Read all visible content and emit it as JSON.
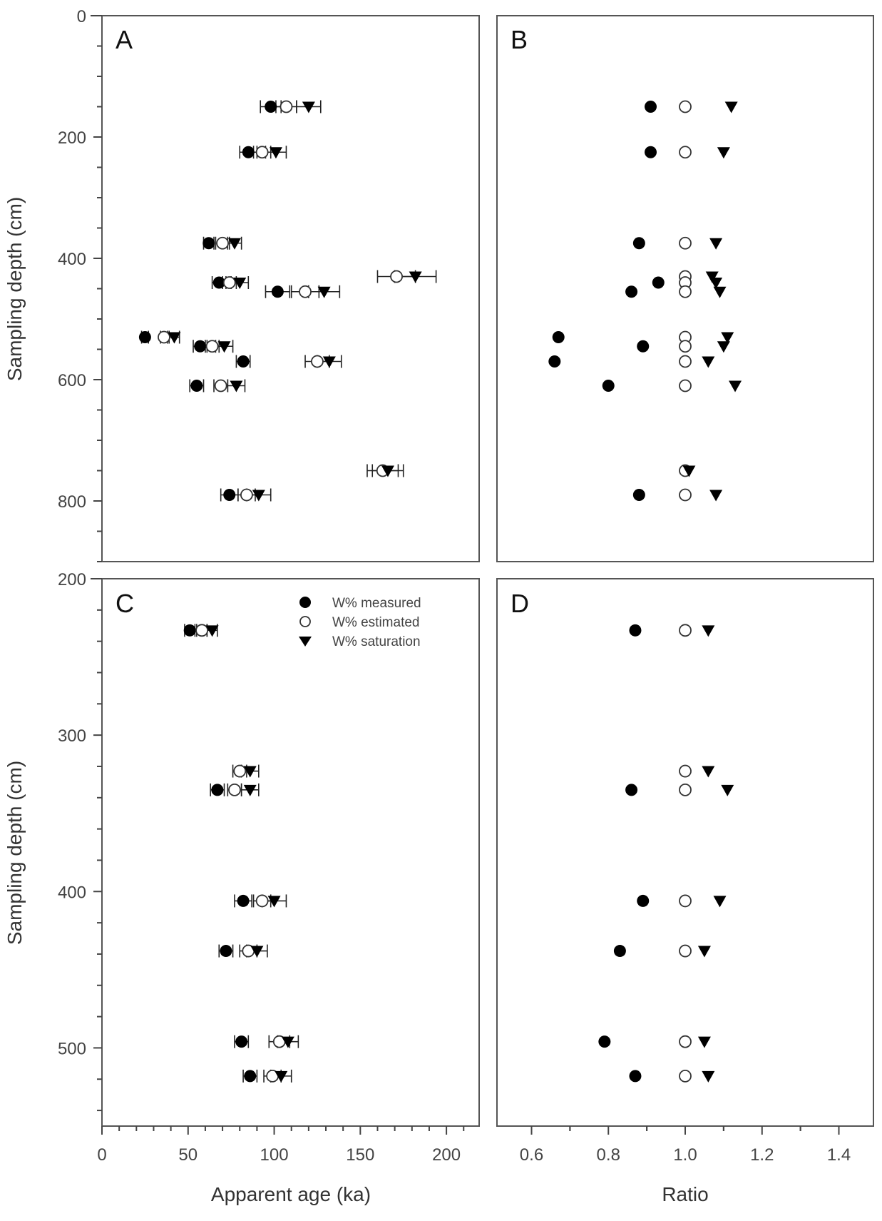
{
  "chart_data": [
    {
      "panel": "A",
      "type": "scatter",
      "xlabel": "",
      "ylabel": "Sampling depth (cm)",
      "xlim": [
        0,
        219
      ],
      "ylim": [
        900,
        0
      ],
      "y_ticks": [
        0,
        200,
        400,
        600,
        800
      ],
      "y_tick_labels": [
        "0",
        "200",
        "400",
        "600",
        "800"
      ],
      "y_minor_step": 50,
      "x_ticks": [],
      "error_bars": true,
      "series": [
        {
          "name": "W% measured",
          "marker": "filled-circle",
          "points": [
            {
              "depth": 150,
              "value": 98,
              "err": 6
            },
            {
              "depth": 225,
              "value": 85,
              "err": 5
            },
            {
              "depth": 375,
              "value": 62,
              "err": 3
            },
            {
              "depth": 440,
              "value": 68,
              "err": 4
            },
            {
              "depth": 455,
              "value": 102,
              "err": 7
            },
            {
              "depth": 530,
              "value": 25,
              "err": 2
            },
            {
              "depth": 545,
              "value": 57,
              "err": 4
            },
            {
              "depth": 570,
              "value": 82,
              "err": 4
            },
            {
              "depth": 610,
              "value": 55,
              "err": 4
            },
            {
              "depth": 790,
              "value": 74,
              "err": 5
            }
          ]
        },
        {
          "name": "W% estimated",
          "marker": "open-circle",
          "points": [
            {
              "depth": 150,
              "value": 107,
              "err": 6
            },
            {
              "depth": 225,
              "value": 93,
              "err": 5
            },
            {
              "depth": 375,
              "value": 70,
              "err": 4
            },
            {
              "depth": 430,
              "value": 171,
              "err": 11
            },
            {
              "depth": 440,
              "value": 74,
              "err": 4
            },
            {
              "depth": 455,
              "value": 118,
              "err": 8
            },
            {
              "depth": 530,
              "value": 36,
              "err": 2
            },
            {
              "depth": 545,
              "value": 64,
              "err": 4
            },
            {
              "depth": 570,
              "value": 125,
              "err": 7
            },
            {
              "depth": 610,
              "value": 69,
              "err": 4
            },
            {
              "depth": 750,
              "value": 163,
              "err": 9
            },
            {
              "depth": 790,
              "value": 84,
              "err": 5
            }
          ]
        },
        {
          "name": "W% saturation",
          "marker": "filled-triangle-down",
          "points": [
            {
              "depth": 150,
              "value": 120,
              "err": 7
            },
            {
              "depth": 225,
              "value": 101,
              "err": 6
            },
            {
              "depth": 375,
              "value": 77,
              "err": 4
            },
            {
              "depth": 430,
              "value": 182,
              "err": 12
            },
            {
              "depth": 440,
              "value": 80,
              "err": 5
            },
            {
              "depth": 455,
              "value": 129,
              "err": 9
            },
            {
              "depth": 530,
              "value": 42,
              "err": 3
            },
            {
              "depth": 545,
              "value": 71,
              "err": 5
            },
            {
              "depth": 570,
              "value": 132,
              "err": 7
            },
            {
              "depth": 610,
              "value": 78,
              "err": 5
            },
            {
              "depth": 750,
              "value": 166,
              "err": 9
            },
            {
              "depth": 790,
              "value": 91,
              "err": 7
            }
          ]
        }
      ]
    },
    {
      "panel": "B",
      "type": "scatter",
      "xlabel": "",
      "ylabel": "",
      "xlim": [
        0.51,
        1.49
      ],
      "ylim": [
        900,
        0
      ],
      "series": [
        {
          "name": "W% measured",
          "marker": "filled-circle",
          "points": [
            {
              "depth": 150,
              "value": 0.91
            },
            {
              "depth": 225,
              "value": 0.91
            },
            {
              "depth": 375,
              "value": 0.88
            },
            {
              "depth": 440,
              "value": 0.93
            },
            {
              "depth": 455,
              "value": 0.86
            },
            {
              "depth": 530,
              "value": 0.67
            },
            {
              "depth": 545,
              "value": 0.89
            },
            {
              "depth": 570,
              "value": 0.66
            },
            {
              "depth": 610,
              "value": 0.8
            },
            {
              "depth": 790,
              "value": 0.88
            }
          ]
        },
        {
          "name": "W% estimated",
          "marker": "open-circle",
          "points": [
            {
              "depth": 150,
              "value": 1.0
            },
            {
              "depth": 225,
              "value": 1.0
            },
            {
              "depth": 375,
              "value": 1.0
            },
            {
              "depth": 430,
              "value": 1.0
            },
            {
              "depth": 440,
              "value": 1.0
            },
            {
              "depth": 455,
              "value": 1.0
            },
            {
              "depth": 530,
              "value": 1.0
            },
            {
              "depth": 545,
              "value": 1.0
            },
            {
              "depth": 570,
              "value": 1.0
            },
            {
              "depth": 610,
              "value": 1.0
            },
            {
              "depth": 750,
              "value": 1.0
            },
            {
              "depth": 790,
              "value": 1.0
            }
          ]
        },
        {
          "name": "W% saturation",
          "marker": "filled-triangle-down",
          "points": [
            {
              "depth": 150,
              "value": 1.12
            },
            {
              "depth": 225,
              "value": 1.1
            },
            {
              "depth": 375,
              "value": 1.08
            },
            {
              "depth": 430,
              "value": 1.07
            },
            {
              "depth": 440,
              "value": 1.08
            },
            {
              "depth": 455,
              "value": 1.09
            },
            {
              "depth": 530,
              "value": 1.11
            },
            {
              "depth": 545,
              "value": 1.1
            },
            {
              "depth": 570,
              "value": 1.06
            },
            {
              "depth": 610,
              "value": 1.13
            },
            {
              "depth": 750,
              "value": 1.01
            },
            {
              "depth": 790,
              "value": 1.08
            }
          ]
        }
      ]
    },
    {
      "panel": "C",
      "type": "scatter",
      "xlabel": "Apparent age (ka)",
      "ylabel": "Sampling depth (cm)",
      "xlim": [
        0,
        219
      ],
      "ylim": [
        550,
        200
      ],
      "x_ticks": [
        0,
        50,
        100,
        150,
        200
      ],
      "x_tick_labels": [
        "0",
        "50",
        "100",
        "150",
        "200"
      ],
      "x_minor_step": 10,
      "y_ticks": [
        200,
        300,
        400,
        500
      ],
      "y_tick_labels": [
        "200",
        "300",
        "400",
        "500"
      ],
      "y_minor_step": 20,
      "legend": {
        "position": "top-right",
        "entries": [
          {
            "label": "W% measured",
            "marker": "filled-circle"
          },
          {
            "label": "W% estimated",
            "marker": "open-circle"
          },
          {
            "label": "W% saturation",
            "marker": "filled-triangle-down"
          }
        ]
      },
      "error_bars": true,
      "series": [
        {
          "name": "W% measured",
          "marker": "filled-circle",
          "points": [
            {
              "depth": 233,
              "value": 51,
              "err": 3
            },
            {
              "depth": 335,
              "value": 67,
              "err": 4
            },
            {
              "depth": 406,
              "value": 82,
              "err": 5
            },
            {
              "depth": 438,
              "value": 72,
              "err": 4
            },
            {
              "depth": 496,
              "value": 81,
              "err": 4
            },
            {
              "depth": 518,
              "value": 86,
              "err": 4
            }
          ]
        },
        {
          "name": "W% estimated",
          "marker": "open-circle",
          "points": [
            {
              "depth": 233,
              "value": 58,
              "err": 3
            },
            {
              "depth": 323,
              "value": 80,
              "err": 4
            },
            {
              "depth": 335,
              "value": 77,
              "err": 4
            },
            {
              "depth": 406,
              "value": 93,
              "err": 5
            },
            {
              "depth": 438,
              "value": 85,
              "err": 5
            },
            {
              "depth": 496,
              "value": 103,
              "err": 6
            },
            {
              "depth": 518,
              "value": 99,
              "err": 5
            }
          ]
        },
        {
          "name": "W% saturation",
          "marker": "filled-triangle-down",
          "points": [
            {
              "depth": 233,
              "value": 64,
              "err": 3
            },
            {
              "depth": 323,
              "value": 86,
              "err": 5
            },
            {
              "depth": 335,
              "value": 86,
              "err": 5
            },
            {
              "depth": 406,
              "value": 100,
              "err": 7
            },
            {
              "depth": 438,
              "value": 90,
              "err": 6
            },
            {
              "depth": 496,
              "value": 108,
              "err": 6
            },
            {
              "depth": 518,
              "value": 104,
              "err": 6
            }
          ]
        }
      ]
    },
    {
      "panel": "D",
      "type": "scatter",
      "xlabel": "Ratio",
      "ylabel": "",
      "xlim": [
        0.51,
        1.49
      ],
      "ylim": [
        550,
        200
      ],
      "x_ticks": [
        0.6,
        0.8,
        1.0,
        1.2,
        1.4
      ],
      "x_tick_labels": [
        "0.6",
        "0.8",
        "1.0",
        "1.2",
        "1.4"
      ],
      "x_minor_step": 0.1,
      "series": [
        {
          "name": "W% measured",
          "marker": "filled-circle",
          "points": [
            {
              "depth": 233,
              "value": 0.87
            },
            {
              "depth": 335,
              "value": 0.86
            },
            {
              "depth": 406,
              "value": 0.89
            },
            {
              "depth": 438,
              "value": 0.83
            },
            {
              "depth": 496,
              "value": 0.79
            },
            {
              "depth": 518,
              "value": 0.87
            }
          ]
        },
        {
          "name": "W% estimated",
          "marker": "open-circle",
          "points": [
            {
              "depth": 233,
              "value": 1.0
            },
            {
              "depth": 323,
              "value": 1.0
            },
            {
              "depth": 335,
              "value": 1.0
            },
            {
              "depth": 406,
              "value": 1.0
            },
            {
              "depth": 438,
              "value": 1.0
            },
            {
              "depth": 496,
              "value": 1.0
            },
            {
              "depth": 518,
              "value": 1.0
            }
          ]
        },
        {
          "name": "W% saturation",
          "marker": "filled-triangle-down",
          "points": [
            {
              "depth": 233,
              "value": 1.06
            },
            {
              "depth": 323,
              "value": 1.06
            },
            {
              "depth": 335,
              "value": 1.11
            },
            {
              "depth": 406,
              "value": 1.09
            },
            {
              "depth": 438,
              "value": 1.05
            },
            {
              "depth": 496,
              "value": 1.05
            },
            {
              "depth": 518,
              "value": 1.06
            }
          ]
        }
      ]
    }
  ],
  "labels": {
    "panel_a": "A",
    "panel_b": "B",
    "panel_c": "C",
    "panel_d": "D",
    "ylabel_top": "Sampling depth (cm)",
    "ylabel_bottom": "Sampling depth (cm)",
    "xlabel_left": "Apparent age (ka)",
    "xlabel_right": "Ratio",
    "legend_measured": "W% measured",
    "legend_estimated": "W% estimated",
    "legend_saturation": "W% saturation"
  }
}
